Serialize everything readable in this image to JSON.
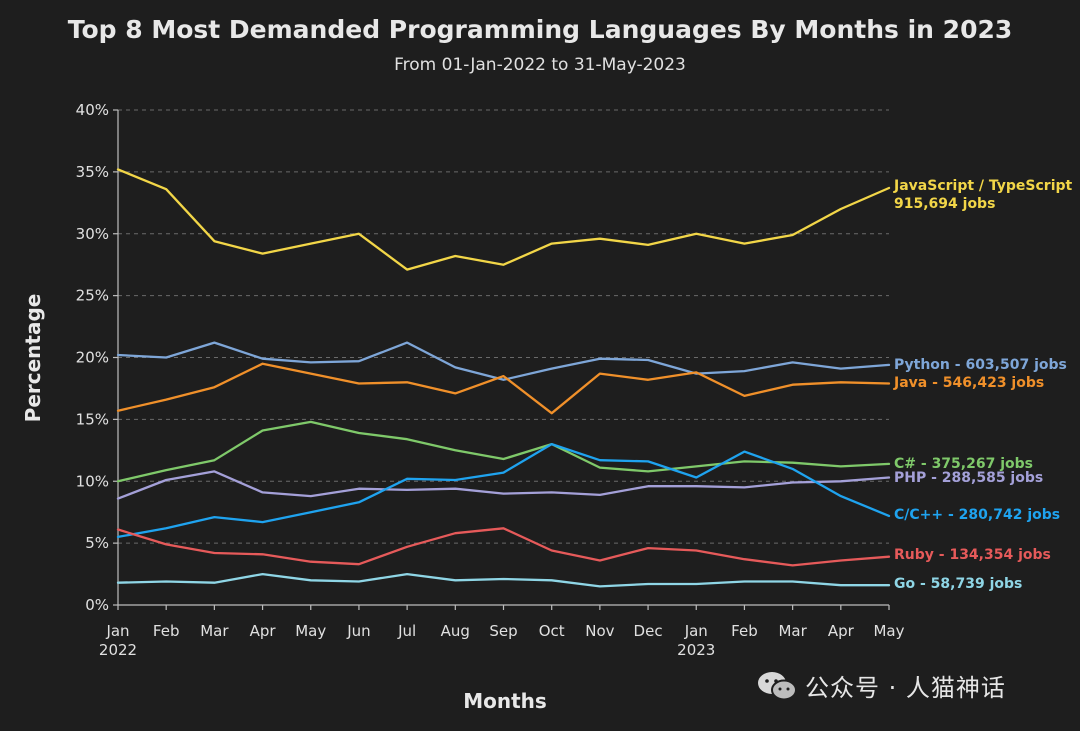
{
  "chart_data": {
    "type": "line",
    "title": "Top 8 Most Demanded Programming Languages By Months in 2023",
    "subtitle": "From 01-Jan-2022 to 31-May-2023",
    "xlabel": "Months",
    "ylabel": "Percentage",
    "ylim": [
      0,
      40
    ],
    "yticks": [
      "0%",
      "5%",
      "10%",
      "15%",
      "20%",
      "25%",
      "30%",
      "35%",
      "40%"
    ],
    "categories": [
      "Jan",
      "Feb",
      "Mar",
      "Apr",
      "May",
      "Jun",
      "Jul",
      "Aug",
      "Sep",
      "Oct",
      "Nov",
      "Dec",
      "Jan",
      "Feb",
      "Mar",
      "Apr",
      "May"
    ],
    "year_labels": [
      {
        "index": 0,
        "label": "2022"
      },
      {
        "index": 12,
        "label": "2023"
      }
    ],
    "grid": true,
    "series": [
      {
        "name": "JavaScript / TypeScript",
        "label": "JavaScript / TypeScript",
        "label2": "915,694 jobs",
        "color": "#f2d648",
        "values": [
          35.2,
          33.6,
          29.4,
          28.4,
          29.2,
          30.0,
          27.1,
          28.2,
          27.5,
          29.2,
          29.6,
          29.1,
          30.0,
          29.2,
          29.9,
          32.0,
          33.7
        ]
      },
      {
        "name": "Python",
        "label": "Python - 603,507 jobs",
        "color": "#7ea6d8",
        "values": [
          20.2,
          20.0,
          21.2,
          19.9,
          19.6,
          19.7,
          21.2,
          19.2,
          18.2,
          19.1,
          19.9,
          19.8,
          18.7,
          18.9,
          19.6,
          19.1,
          19.4
        ]
      },
      {
        "name": "Java",
        "label": "Java - 546,423 jobs",
        "color": "#f0902a",
        "values": [
          15.7,
          16.6,
          17.6,
          19.5,
          18.7,
          17.9,
          18.0,
          17.1,
          18.5,
          15.5,
          18.7,
          18.2,
          18.8,
          16.9,
          17.8,
          18.0,
          17.9
        ]
      },
      {
        "name": "C#",
        "label": "C# - 375,267 jobs",
        "color": "#7fc96a",
        "values": [
          10.0,
          10.9,
          11.7,
          14.1,
          14.8,
          13.9,
          13.4,
          12.5,
          11.8,
          13.0,
          11.1,
          10.8,
          11.2,
          11.6,
          11.5,
          11.2,
          11.4
        ]
      },
      {
        "name": "PHP",
        "label": "PHP - 288,585 jobs",
        "color": "#a4a0d8",
        "values": [
          8.6,
          10.1,
          10.8,
          9.1,
          8.8,
          9.4,
          9.3,
          9.4,
          9.0,
          9.1,
          8.9,
          9.6,
          9.6,
          9.5,
          9.9,
          10.0,
          10.3
        ]
      },
      {
        "name": "C/C++",
        "label": "C/C++ - 280,742 jobs",
        "color": "#1fa3ef",
        "values": [
          5.5,
          6.2,
          7.1,
          6.7,
          7.5,
          8.3,
          10.2,
          10.1,
          10.7,
          13.0,
          11.7,
          11.6,
          10.3,
          12.4,
          11.0,
          8.8,
          7.2
        ]
      },
      {
        "name": "Ruby",
        "label": "Ruby - 134,354 jobs",
        "color": "#e65a5a",
        "values": [
          6.1,
          4.9,
          4.2,
          4.1,
          3.5,
          3.3,
          4.7,
          5.8,
          6.2,
          4.4,
          3.6,
          4.6,
          4.4,
          3.7,
          3.2,
          3.6,
          3.9
        ]
      },
      {
        "name": "Go",
        "label": "Go - 58,739 jobs",
        "color": "#8fd6e6",
        "values": [
          1.8,
          1.9,
          1.8,
          2.5,
          2.0,
          1.9,
          2.5,
          2.0,
          2.1,
          2.0,
          1.5,
          1.7,
          1.7,
          1.9,
          1.9,
          1.6,
          1.6
        ]
      }
    ]
  },
  "watermark": {
    "text": "公众号 · 人猫神话",
    "icon": "wechat-icon"
  }
}
